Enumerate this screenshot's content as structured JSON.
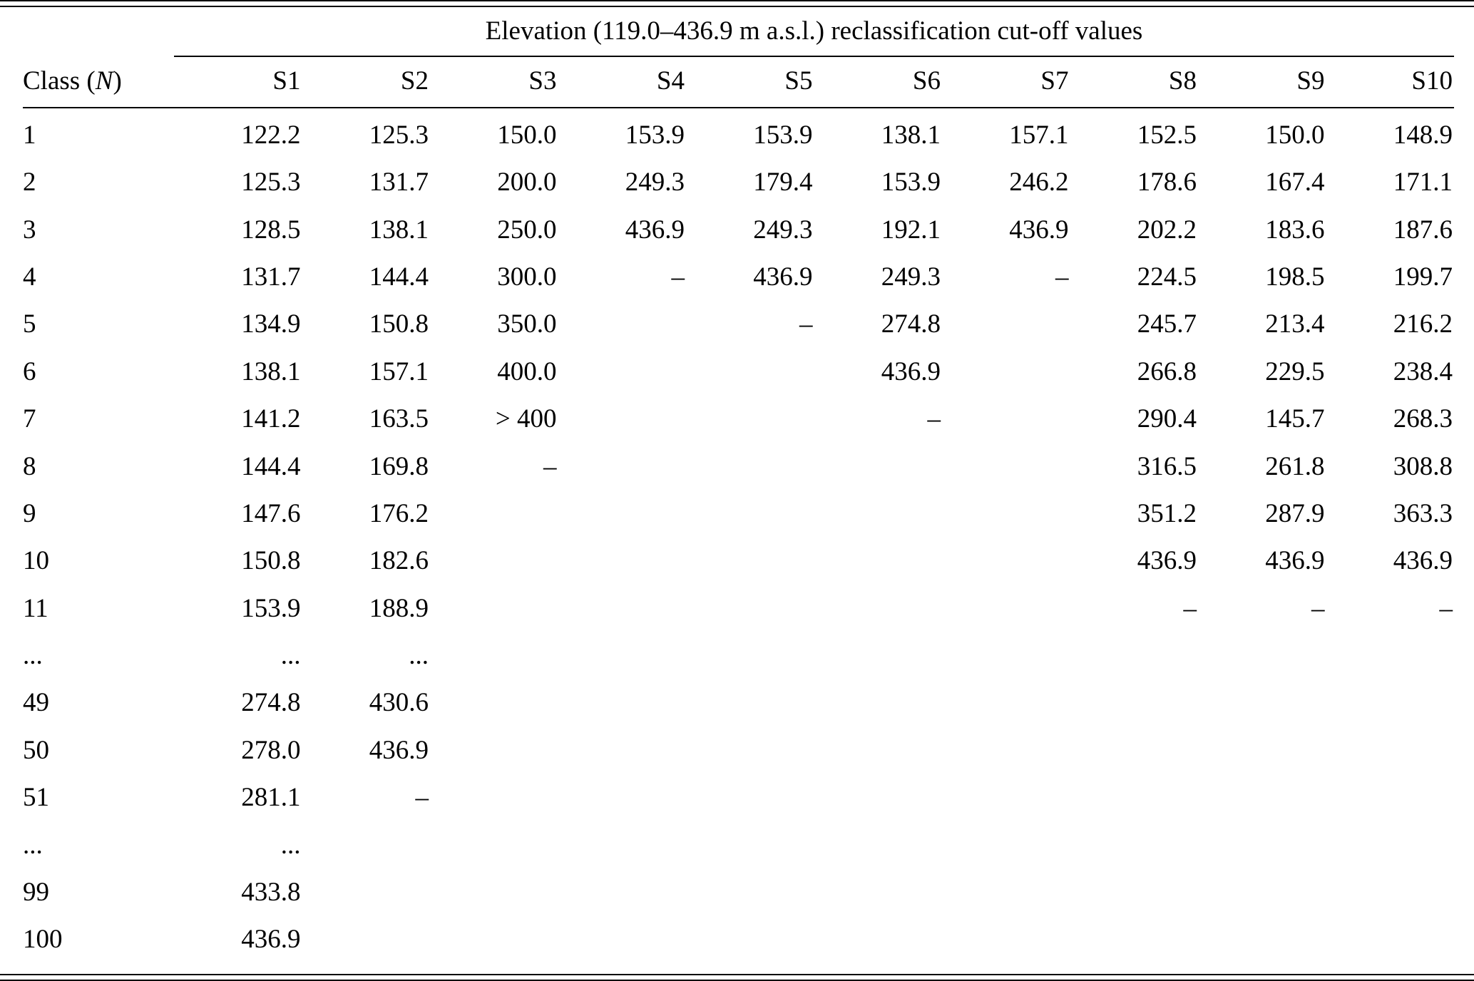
{
  "table": {
    "span_header": "Elevation (119.0–436.9 m a.s.l.) reclassification cut-off values",
    "class_label": {
      "pre": "Class (",
      "var": "N",
      "post": ")"
    },
    "scenario_headers": [
      "S1",
      "S2",
      "S3",
      "S4",
      "S5",
      "S6",
      "S7",
      "S8",
      "S9",
      "S10"
    ],
    "rows": [
      {
        "class": "1",
        "values": [
          "122.2",
          "125.3",
          "150.0",
          "153.9",
          "153.9",
          "138.1",
          "157.1",
          "152.5",
          "150.0",
          "148.9"
        ]
      },
      {
        "class": "2",
        "values": [
          "125.3",
          "131.7",
          "200.0",
          "249.3",
          "179.4",
          "153.9",
          "246.2",
          "178.6",
          "167.4",
          "171.1"
        ]
      },
      {
        "class": "3",
        "values": [
          "128.5",
          "138.1",
          "250.0",
          "436.9",
          "249.3",
          "192.1",
          "436.9",
          "202.2",
          "183.6",
          "187.6"
        ]
      },
      {
        "class": "4",
        "values": [
          "131.7",
          "144.4",
          "300.0",
          "–",
          "436.9",
          "249.3",
          "–",
          "224.5",
          "198.5",
          "199.7"
        ]
      },
      {
        "class": "5",
        "values": [
          "134.9",
          "150.8",
          "350.0",
          "",
          "–",
          "274.8",
          "",
          "245.7",
          "213.4",
          "216.2"
        ]
      },
      {
        "class": "6",
        "values": [
          "138.1",
          "157.1",
          "400.0",
          "",
          "",
          "436.9",
          "",
          "266.8",
          "229.5",
          "238.4"
        ]
      },
      {
        "class": "7",
        "values": [
          "141.2",
          "163.5",
          "> 400",
          "",
          "",
          "–",
          "",
          "290.4",
          "145.7",
          "268.3"
        ]
      },
      {
        "class": "8",
        "values": [
          "144.4",
          "169.8",
          "–",
          "",
          "",
          "",
          "",
          "316.5",
          "261.8",
          "308.8"
        ]
      },
      {
        "class": "9",
        "values": [
          "147.6",
          "176.2",
          "",
          "",
          "",
          "",
          "",
          "351.2",
          "287.9",
          "363.3"
        ]
      },
      {
        "class": "10",
        "values": [
          "150.8",
          "182.6",
          "",
          "",
          "",
          "",
          "",
          "436.9",
          "436.9",
          "436.9"
        ]
      },
      {
        "class": "11",
        "values": [
          "153.9",
          "188.9",
          "",
          "",
          "",
          "",
          "",
          "–",
          "–",
          "–"
        ]
      },
      {
        "class": "...",
        "values": [
          "...",
          "...",
          "",
          "",
          "",
          "",
          "",
          "",
          "",
          ""
        ]
      },
      {
        "class": "49",
        "values": [
          "274.8",
          "430.6",
          "",
          "",
          "",
          "",
          "",
          "",
          "",
          ""
        ]
      },
      {
        "class": "50",
        "values": [
          "278.0",
          "436.9",
          "",
          "",
          "",
          "",
          "",
          "",
          "",
          ""
        ]
      },
      {
        "class": "51",
        "values": [
          "281.1",
          "–",
          "",
          "",
          "",
          "",
          "",
          "",
          "",
          ""
        ]
      },
      {
        "class": "...",
        "values": [
          "...",
          "",
          "",
          "",
          "",
          "",
          "",
          "",
          "",
          ""
        ]
      },
      {
        "class": "99",
        "values": [
          "433.8",
          "",
          "",
          "",
          "",
          "",
          "",
          "",
          "",
          ""
        ]
      },
      {
        "class": "100",
        "values": [
          "436.9",
          "",
          "",
          "",
          "",
          "",
          "",
          "",
          "",
          ""
        ]
      }
    ]
  }
}
